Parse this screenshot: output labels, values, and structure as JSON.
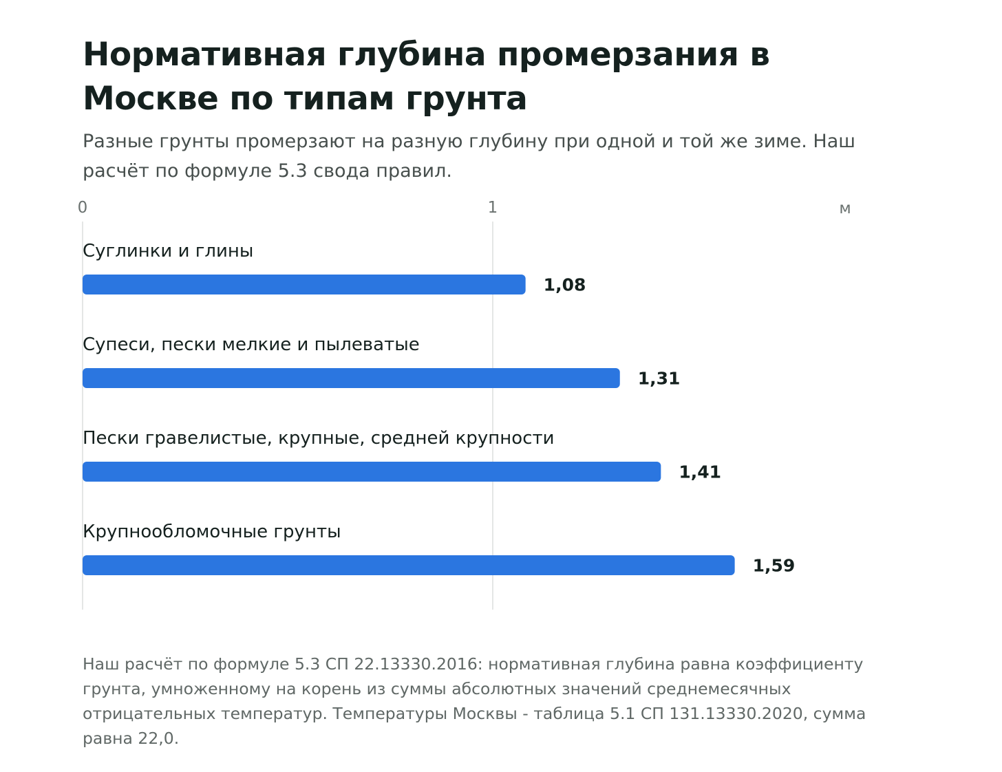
{
  "header": {
    "title": "Нормативная глубина промерзания в Москве по типам грунта",
    "subtitle": "Разные грунты промерзают на разную глубину при одной и той же зиме. Наш расчёт по формуле 5.3 свода правил."
  },
  "chart_data": {
    "type": "bar",
    "orientation": "horizontal",
    "categories": [
      "Суглинки и глины",
      "Супеси, пески мелкие и пылеватые",
      "Пески гравелистые, крупные, средней крупности",
      "Крупнообломочные грунты"
    ],
    "values": [
      1.08,
      1.31,
      1.41,
      1.59
    ],
    "value_labels": [
      "1,08",
      "1,31",
      "1,41",
      "1,59"
    ],
    "x_ticks": [
      {
        "value": 0,
        "label": "0"
      },
      {
        "value": 1,
        "label": "1"
      }
    ],
    "x_unit": "м",
    "xlim": [
      0,
      1.86
    ],
    "grid": true,
    "bar_color": "#2b76e0"
  },
  "footnote": {
    "text": "Наш расчёт по формуле 5.3 СП 22.13330.2016: нормативная глубина равна коэффициенту грунта, умноженному на корень из суммы абсолютных значений среднемесячных отрицательных температур. Температуры Москвы - таблица 5.1 СП 131.13330.2020, сумма равна 22,0."
  }
}
